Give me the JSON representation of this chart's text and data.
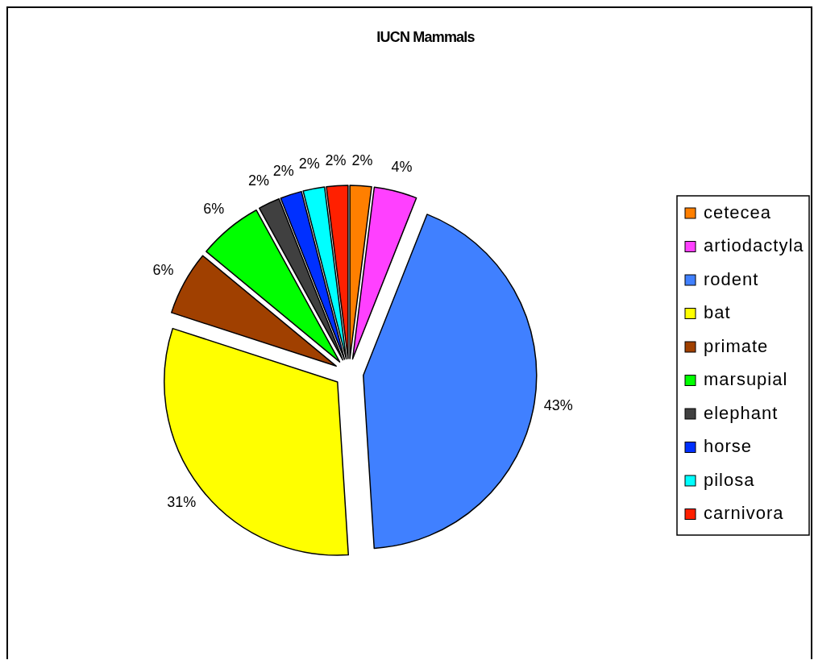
{
  "chart_data": {
    "type": "pie",
    "title": "IUCN Mammals",
    "categories": [
      "cetecea",
      "artiodactyla",
      "rodent",
      "bat",
      "primate",
      "marsupial",
      "elephant",
      "horse",
      "pilosa",
      "carnivora"
    ],
    "values": [
      2,
      4,
      43,
      31,
      6,
      6,
      2,
      2,
      2,
      2
    ],
    "value_labels": [
      "2%",
      "4%",
      "43%",
      "31%",
      "6%",
      "6%",
      "2%",
      "2%",
      "2%",
      "2%"
    ],
    "colors": [
      "#ff7f00",
      "#ff40ff",
      "#4080ff",
      "#ffff00",
      "#a04000",
      "#00ff00",
      "#404040",
      "#0030ff",
      "#00ffff",
      "#ff2000"
    ],
    "legend": "right"
  }
}
